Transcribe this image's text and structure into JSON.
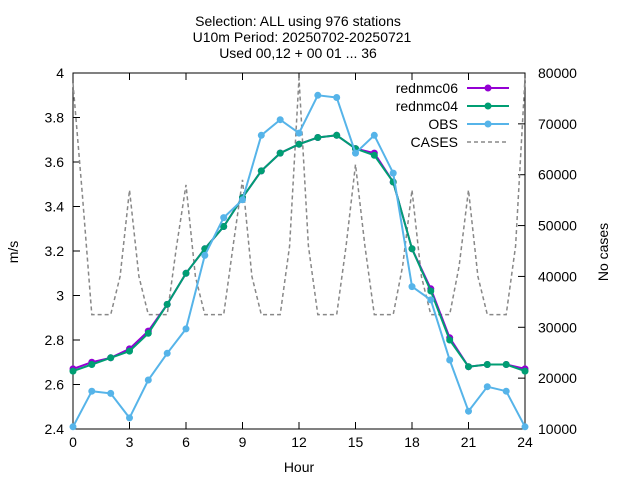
{
  "chart_data": {
    "type": "line",
    "title_lines": [
      "Selection: ALL using   976 stations",
      "U10m   Period: 20250702-20250721",
      "Used 00,12 + 00 01 ... 36"
    ],
    "xlabel": "Hour",
    "ylabel": "m/s",
    "y2label": "No cases",
    "xlim": [
      0,
      24
    ],
    "ylim": [
      2.4,
      4.0
    ],
    "y2lim": [
      10000,
      80000
    ],
    "xticks": [
      "0",
      "3",
      "6",
      "9",
      "12",
      "15",
      "18",
      "21",
      "24"
    ],
    "yticks": [
      "2.4",
      "2.6",
      "2.8",
      "3",
      "3.2",
      "3.4",
      "3.6",
      "3.8",
      "4"
    ],
    "y2ticks": [
      "10000",
      "20000",
      "30000",
      "40000",
      "50000",
      "60000",
      "70000",
      "80000"
    ],
    "grid": false,
    "legend_position": "top-right",
    "x": [
      0,
      1,
      2,
      3,
      4,
      5,
      6,
      7,
      8,
      9,
      10,
      11,
      12,
      13,
      14,
      15,
      16,
      17,
      18,
      19,
      20,
      21,
      22,
      23,
      24
    ],
    "series": [
      {
        "name": "rednmc06",
        "color": "#9400d3",
        "axis": "y",
        "marker": "circle",
        "values": [
          2.67,
          2.7,
          2.72,
          2.76,
          2.84,
          2.96,
          3.1,
          3.21,
          3.31,
          3.44,
          3.56,
          3.64,
          3.68,
          3.71,
          3.72,
          3.66,
          3.64,
          3.51,
          3.21,
          3.03,
          2.81,
          2.68,
          2.69,
          2.69,
          2.67
        ]
      },
      {
        "name": "rednmc04",
        "color": "#009e73",
        "axis": "y",
        "marker": "circle",
        "values": [
          2.66,
          2.69,
          2.72,
          2.75,
          2.83,
          2.96,
          3.1,
          3.21,
          3.31,
          3.44,
          3.56,
          3.64,
          3.68,
          3.71,
          3.72,
          3.66,
          3.63,
          3.51,
          3.21,
          3.02,
          2.8,
          2.68,
          2.69,
          2.69,
          2.66
        ]
      },
      {
        "name": "OBS",
        "color": "#56b4e9",
        "axis": "y",
        "marker": "circle",
        "values": [
          2.41,
          2.57,
          2.56,
          2.45,
          2.62,
          2.74,
          2.85,
          3.18,
          3.35,
          3.43,
          3.72,
          3.79,
          3.73,
          3.9,
          3.89,
          3.64,
          3.72,
          3.55,
          3.04,
          2.98,
          2.71,
          2.48,
          2.59,
          2.57,
          2.41
        ]
      },
      {
        "name": "CASES",
        "color": "#888888",
        "axis": "y2",
        "dash": true,
        "x": [
          0,
          0.5,
          1,
          1.5,
          2,
          2.5,
          3,
          3.5,
          4,
          4.5,
          5,
          5.5,
          6,
          6.5,
          7,
          7.5,
          8,
          8.5,
          9,
          9.5,
          10,
          10.5,
          11,
          11.5,
          12,
          12.5,
          13,
          13.5,
          14,
          14.5,
          15,
          15.5,
          16,
          16.5,
          17,
          17.5,
          18,
          18.5,
          19,
          19.5,
          20,
          20.5,
          21,
          21.5,
          22,
          22.5,
          23,
          23.5,
          24
        ],
        "values": [
          78000,
          56000,
          32500,
          32500,
          32500,
          40000,
          57000,
          40000,
          32500,
          32500,
          32500,
          46000,
          58000,
          40000,
          32500,
          32500,
          32500,
          46000,
          59000,
          40000,
          32500,
          32500,
          32500,
          46000,
          79000,
          46000,
          32500,
          32500,
          32500,
          46000,
          62000,
          46000,
          32500,
          32500,
          32500,
          42000,
          57000,
          40000,
          32500,
          32500,
          32500,
          42000,
          57000,
          40000,
          32500,
          32500,
          32500,
          46000,
          79000
        ]
      }
    ]
  }
}
